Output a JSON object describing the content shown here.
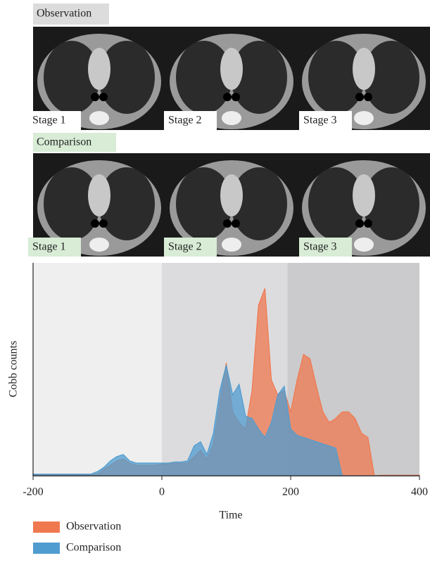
{
  "panels": [
    {
      "label": "Observation",
      "stages": [
        "Stage 1",
        "Stage 2",
        "Stage 3"
      ]
    },
    {
      "label": "Comparison",
      "stages": [
        "Stage 1",
        "Stage 2",
        "Stage 3"
      ]
    }
  ],
  "chart_data": {
    "type": "area",
    "x_label": "Time",
    "y_label": "Cobb counts",
    "x": [
      -200,
      -190,
      -180,
      -170,
      -160,
      -150,
      -140,
      -130,
      -120,
      -110,
      -100,
      -90,
      -80,
      -70,
      -60,
      -50,
      -40,
      -30,
      -20,
      -10,
      0,
      10,
      20,
      30,
      40,
      50,
      60,
      70,
      80,
      90,
      100,
      110,
      120,
      130,
      140,
      150,
      160,
      170,
      180,
      190,
      200,
      210,
      220,
      230,
      240,
      250,
      260,
      270,
      280,
      290,
      300,
      310,
      320,
      330,
      340,
      350,
      360,
      370,
      380,
      390,
      400
    ],
    "series": [
      {
        "name": "Observation",
        "color": "#f0784f",
        "values": [
          0.5,
          0.5,
          0.5,
          0.5,
          0.5,
          0.5,
          0.5,
          0.5,
          0.5,
          0.5,
          1,
          3,
          5,
          7,
          8,
          6,
          5,
          5,
          5,
          5,
          5.5,
          5.5,
          6,
          6,
          6,
          9,
          12,
          8,
          15,
          35,
          53,
          30,
          25,
          22,
          40,
          80,
          88,
          45,
          38,
          40,
          30,
          45,
          57,
          55,
          42,
          30,
          25,
          27,
          30,
          30,
          27,
          20,
          18,
          0,
          0.3,
          0.3,
          0.3,
          0.3,
          0.3,
          0.3,
          0.3
        ]
      },
      {
        "name": "Comparison",
        "color": "#4f9cd0",
        "values": [
          0.8,
          0.8,
          0.8,
          0.8,
          0.8,
          0.8,
          0.8,
          0.8,
          0.8,
          0.8,
          2,
          4,
          7,
          9,
          10,
          7,
          6,
          6,
          6,
          6,
          6,
          6,
          6.5,
          6.5,
          7,
          14,
          16,
          10,
          20,
          40,
          52,
          38,
          43,
          28,
          27,
          22,
          18,
          25,
          38,
          42,
          22,
          19,
          18,
          17,
          16,
          15,
          14,
          13,
          0,
          0,
          0,
          0,
          0,
          0,
          0,
          0,
          0,
          0,
          0,
          0,
          0
        ]
      }
    ],
    "xlim": [
      -200,
      400
    ],
    "xticks": [
      -200,
      0,
      200,
      400
    ],
    "ylim": [
      0,
      100
    ],
    "shaded_regions": [
      {
        "from": -200,
        "to": 0,
        "color": "#efefef"
      },
      {
        "from": 0,
        "to": 195,
        "color": "#dcdcde"
      },
      {
        "from": 195,
        "to": 400,
        "color": "#cbcbcd"
      }
    ]
  }
}
